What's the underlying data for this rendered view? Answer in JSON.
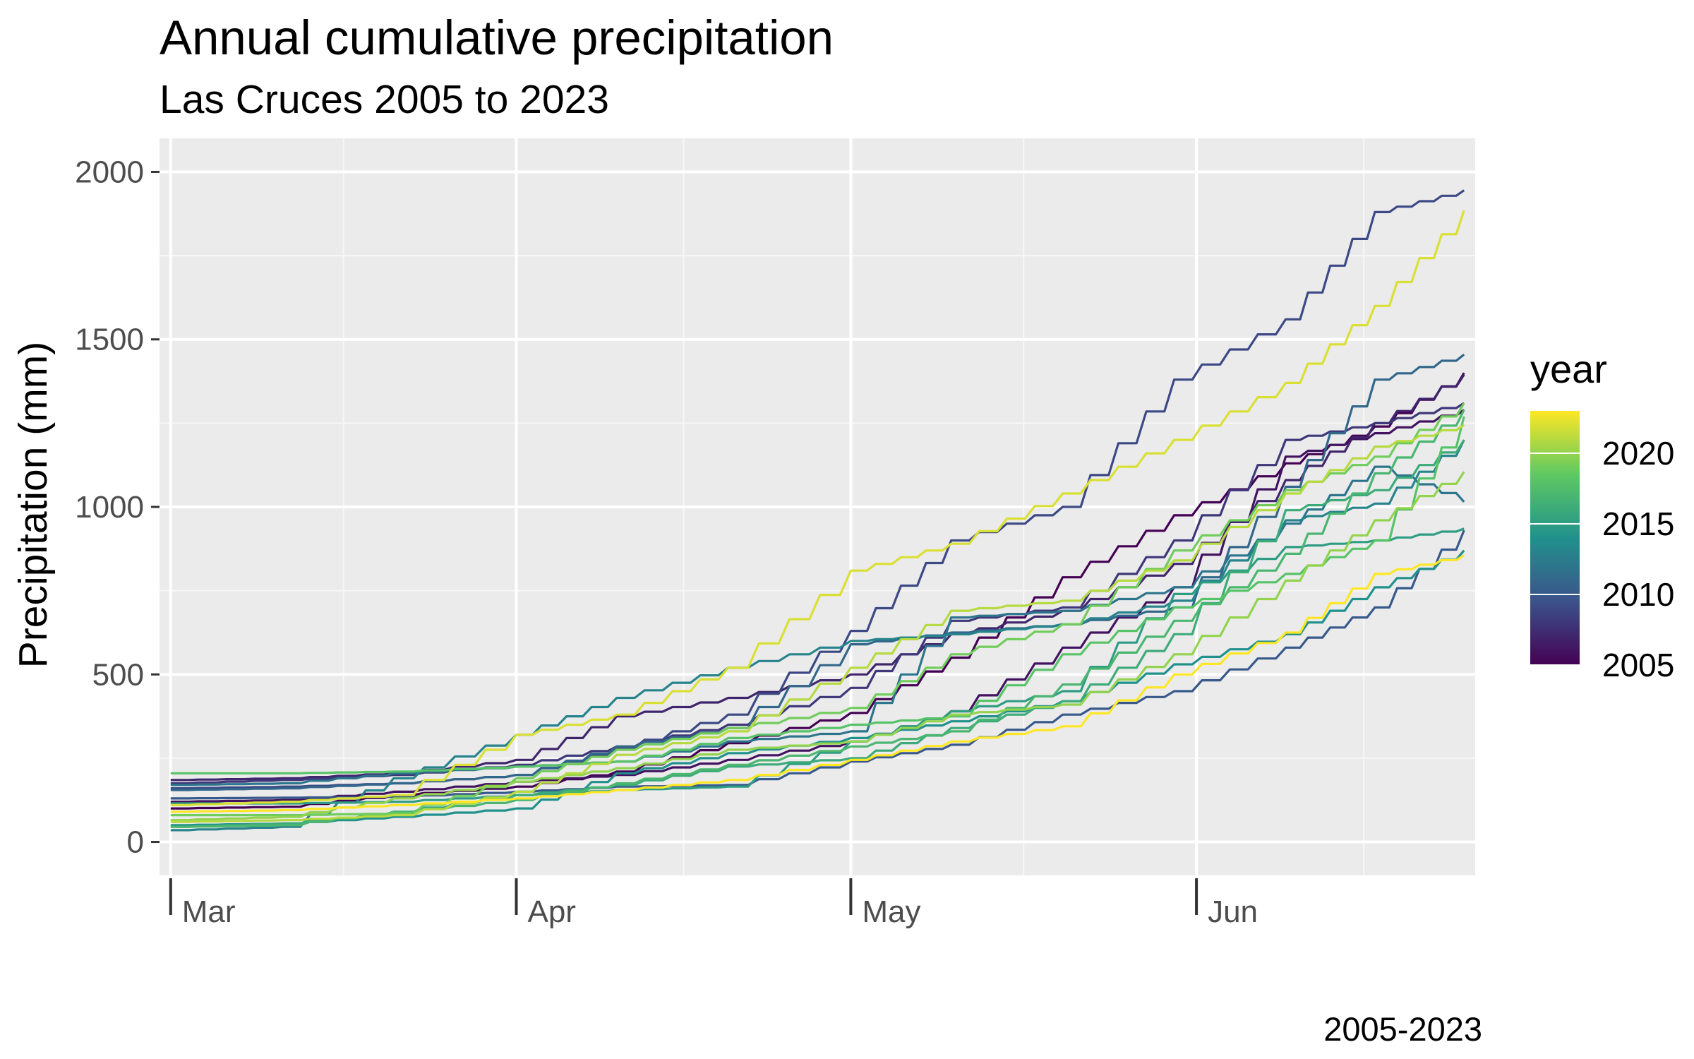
{
  "chart_data": {
    "type": "line",
    "title": "Annual cumulative precipitation",
    "subtitle": "Las Cruces 2005 to 2023",
    "caption": "2005-2023",
    "xlabel": "",
    "ylabel": "Precipitation (mm)",
    "x_ticks": [
      "Mar",
      "Apr",
      "May",
      "Jun"
    ],
    "y_ticks": [
      0,
      500,
      1000,
      1500,
      2000
    ],
    "ylim": [
      -100,
      2100
    ],
    "x_range_days": [
      -1,
      117
    ],
    "month_starts_days": [
      0,
      31,
      61,
      92
    ],
    "grid": true,
    "legend": {
      "title": "year",
      "position": "right",
      "type": "colorbar",
      "labels": [
        2005,
        2010,
        2015,
        2020
      ],
      "range": [
        2005,
        2023
      ],
      "colors": [
        "#440154",
        "#3b528b",
        "#21918c",
        "#5ec962",
        "#fde725"
      ]
    },
    "colors": {
      "panel_background": "#ebebeb",
      "grid_major": "#ffffff",
      "grid_minor": "#f7f7f7"
    },
    "series": [
      {
        "year": 2005,
        "points": [
          [
            0,
            100
          ],
          [
            10,
            105
          ],
          [
            20,
            140
          ],
          [
            31,
            165
          ],
          [
            40,
            210
          ],
          [
            50,
            295
          ],
          [
            61,
            385
          ],
          [
            70,
            550
          ],
          [
            80,
            790
          ],
          [
            90,
            975
          ],
          [
            100,
            1130
          ],
          [
            108,
            1240
          ],
          [
            116,
            1400
          ]
        ]
      },
      {
        "year": 2006,
        "points": [
          [
            0,
            120
          ],
          [
            10,
            125
          ],
          [
            20,
            150
          ],
          [
            31,
            180
          ],
          [
            40,
            200
          ],
          [
            50,
            245
          ],
          [
            61,
            300
          ],
          [
            70,
            390
          ],
          [
            80,
            580
          ],
          [
            90,
            760
          ],
          [
            100,
            1150
          ],
          [
            108,
            1220
          ],
          [
            116,
            1290
          ]
        ]
      },
      {
        "year": 2007,
        "points": [
          [
            0,
            185
          ],
          [
            10,
            190
          ],
          [
            20,
            205
          ],
          [
            31,
            245
          ],
          [
            40,
            375
          ],
          [
            50,
            430
          ],
          [
            61,
            500
          ],
          [
            70,
            620
          ],
          [
            80,
            690
          ],
          [
            90,
            830
          ],
          [
            100,
            1080
          ],
          [
            108,
            1250
          ],
          [
            116,
            1395
          ]
        ]
      },
      {
        "year": 2008,
        "points": [
          [
            0,
            175
          ],
          [
            10,
            185
          ],
          [
            20,
            200
          ],
          [
            31,
            230
          ],
          [
            40,
            285
          ],
          [
            50,
            350
          ],
          [
            61,
            460
          ],
          [
            70,
            660
          ],
          [
            80,
            700
          ],
          [
            90,
            900
          ],
          [
            100,
            1200
          ],
          [
            108,
            1250
          ],
          [
            116,
            1310
          ]
        ]
      },
      {
        "year": 2009,
        "points": [
          [
            0,
            160
          ],
          [
            10,
            165
          ],
          [
            20,
            175
          ],
          [
            31,
            200
          ],
          [
            40,
            280
          ],
          [
            50,
            380
          ],
          [
            61,
            630
          ],
          [
            70,
            900
          ],
          [
            80,
            1000
          ],
          [
            90,
            1380
          ],
          [
            100,
            1560
          ],
          [
            108,
            1880
          ],
          [
            116,
            1945
          ]
        ]
      },
      {
        "year": 2010,
        "points": [
          [
            0,
            130
          ],
          [
            10,
            132
          ],
          [
            20,
            135
          ],
          [
            31,
            150
          ],
          [
            40,
            165
          ],
          [
            50,
            170
          ],
          [
            61,
            240
          ],
          [
            70,
            290
          ],
          [
            80,
            380
          ],
          [
            90,
            450
          ],
          [
            100,
            580
          ],
          [
            108,
            700
          ],
          [
            116,
            930
          ]
        ]
      },
      {
        "year": 2011,
        "points": [
          [
            0,
            155
          ],
          [
            10,
            160
          ],
          [
            20,
            175
          ],
          [
            31,
            200
          ],
          [
            40,
            285
          ],
          [
            50,
            340
          ],
          [
            61,
            590
          ],
          [
            70,
            625
          ],
          [
            80,
            650
          ],
          [
            90,
            700
          ],
          [
            100,
            1060
          ],
          [
            108,
            1380
          ],
          [
            116,
            1455
          ]
        ]
      },
      {
        "year": 2012,
        "points": [
          [
            0,
            170
          ],
          [
            10,
            175
          ],
          [
            20,
            205
          ],
          [
            31,
            225
          ],
          [
            40,
            240
          ],
          [
            50,
            300
          ],
          [
            61,
            330
          ],
          [
            70,
            670
          ],
          [
            80,
            690
          ],
          [
            90,
            760
          ],
          [
            100,
            950
          ],
          [
            108,
            1120
          ],
          [
            116,
            1015
          ]
        ]
      },
      {
        "year": 2013,
        "points": [
          [
            0,
            35
          ],
          [
            10,
            45
          ],
          [
            20,
            190
          ],
          [
            31,
            320
          ],
          [
            40,
            430
          ],
          [
            50,
            520
          ],
          [
            61,
            600
          ],
          [
            70,
            620
          ],
          [
            80,
            650
          ],
          [
            90,
            720
          ],
          [
            100,
            960
          ],
          [
            108,
            1010
          ],
          [
            116,
            1200
          ]
        ]
      },
      {
        "year": 2014,
        "points": [
          [
            0,
            50
          ],
          [
            10,
            55
          ],
          [
            20,
            75
          ],
          [
            31,
            100
          ],
          [
            40,
            205
          ],
          [
            50,
            265
          ],
          [
            61,
            310
          ],
          [
            70,
            360
          ],
          [
            80,
            420
          ],
          [
            90,
            530
          ],
          [
            100,
            620
          ],
          [
            108,
            760
          ],
          [
            116,
            870
          ]
        ]
      },
      {
        "year": 2015,
        "points": [
          [
            0,
            115
          ],
          [
            10,
            115
          ],
          [
            20,
            120
          ],
          [
            31,
            140
          ],
          [
            40,
            155
          ],
          [
            50,
            165
          ],
          [
            61,
            300
          ],
          [
            70,
            390
          ],
          [
            80,
            450
          ],
          [
            90,
            740
          ],
          [
            100,
            880
          ],
          [
            108,
            900
          ],
          [
            116,
            935
          ]
        ]
      },
      {
        "year": 2016,
        "points": [
          [
            0,
            45
          ],
          [
            10,
            55
          ],
          [
            20,
            90
          ],
          [
            31,
            140
          ],
          [
            40,
            170
          ],
          [
            50,
            225
          ],
          [
            61,
            250
          ],
          [
            70,
            340
          ],
          [
            80,
            420
          ],
          [
            90,
            620
          ],
          [
            100,
            990
          ],
          [
            108,
            1050
          ],
          [
            116,
            1200
          ]
        ]
      },
      {
        "year": 2017,
        "points": [
          [
            0,
            45
          ],
          [
            10,
            50
          ],
          [
            20,
            90
          ],
          [
            31,
            125
          ],
          [
            40,
            175
          ],
          [
            50,
            230
          ],
          [
            61,
            285
          ],
          [
            70,
            330
          ],
          [
            80,
            470
          ],
          [
            90,
            660
          ],
          [
            100,
            860
          ],
          [
            108,
            1100
          ],
          [
            116,
            1290
          ]
        ]
      },
      {
        "year": 2018,
        "points": [
          [
            0,
            205
          ],
          [
            10,
            205
          ],
          [
            20,
            210
          ],
          [
            31,
            225
          ],
          [
            40,
            240
          ],
          [
            50,
            310
          ],
          [
            61,
            350
          ],
          [
            70,
            375
          ],
          [
            80,
            560
          ],
          [
            90,
            700
          ],
          [
            100,
            800
          ],
          [
            108,
            900
          ],
          [
            116,
            1270
          ]
        ]
      },
      {
        "year": 2019,
        "points": [
          [
            0,
            80
          ],
          [
            10,
            80
          ],
          [
            20,
            85
          ],
          [
            31,
            190
          ],
          [
            40,
            275
          ],
          [
            50,
            340
          ],
          [
            61,
            400
          ],
          [
            70,
            560
          ],
          [
            80,
            650
          ],
          [
            90,
            870
          ],
          [
            100,
            1050
          ],
          [
            108,
            1150
          ],
          [
            116,
            1310
          ]
        ]
      },
      {
        "year": 2020,
        "points": [
          [
            0,
            65
          ],
          [
            10,
            75
          ],
          [
            20,
            130
          ],
          [
            31,
            180
          ],
          [
            40,
            220
          ],
          [
            50,
            275
          ],
          [
            61,
            300
          ],
          [
            70,
            380
          ],
          [
            80,
            410
          ],
          [
            90,
            560
          ],
          [
            100,
            780
          ],
          [
            108,
            960
          ],
          [
            116,
            1105
          ]
        ]
      },
      {
        "year": 2021,
        "points": [
          [
            0,
            60
          ],
          [
            10,
            65
          ],
          [
            20,
            80
          ],
          [
            31,
            150
          ],
          [
            40,
            260
          ],
          [
            50,
            330
          ],
          [
            61,
            520
          ],
          [
            70,
            690
          ],
          [
            80,
            720
          ],
          [
            90,
            840
          ],
          [
            100,
            1040
          ],
          [
            108,
            1180
          ],
          [
            116,
            1245
          ]
        ]
      },
      {
        "year": 2022,
        "points": [
          [
            0,
            110
          ],
          [
            10,
            120
          ],
          [
            20,
            140
          ],
          [
            31,
            320
          ],
          [
            40,
            380
          ],
          [
            50,
            520
          ],
          [
            61,
            810
          ],
          [
            70,
            890
          ],
          [
            80,
            1040
          ],
          [
            90,
            1200
          ],
          [
            100,
            1370
          ],
          [
            108,
            1600
          ],
          [
            116,
            1885
          ]
        ]
      },
      {
        "year": 2023,
        "points": [
          [
            0,
            90
          ],
          [
            10,
            95
          ],
          [
            20,
            110
          ],
          [
            31,
            130
          ],
          [
            40,
            155
          ],
          [
            50,
            185
          ],
          [
            61,
            245
          ],
          [
            70,
            300
          ],
          [
            80,
            345
          ],
          [
            90,
            500
          ],
          [
            100,
            625
          ],
          [
            108,
            800
          ],
          [
            116,
            855
          ]
        ]
      }
    ]
  }
}
